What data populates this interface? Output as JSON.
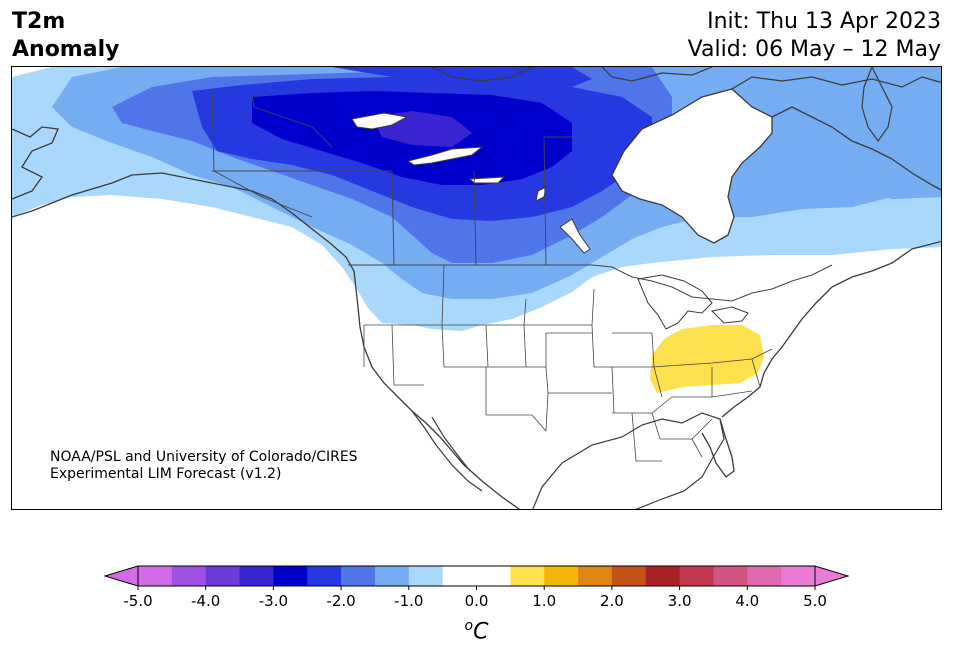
{
  "title": {
    "left_line1": "T2m",
    "left_line2": "Anomaly",
    "init": "Init: Thu 13 Apr 2023",
    "valid": "Valid: 06 May – 12 May"
  },
  "credit": {
    "line1": "NOAA/PSL and University of Colorado/CIRES",
    "line2": "Experimental LIM Forecast (v1.2)"
  },
  "colorbar": {
    "unit_main": "C",
    "unit_sup": "o",
    "ticks": [
      "-5.0",
      "-4.0",
      "-3.0",
      "-2.0",
      "-1.0",
      "0.0",
      "1.0",
      "2.0",
      "3.0",
      "4.0",
      "5.0"
    ],
    "colors": [
      "#d46be6",
      "#9f50e0",
      "#6a3bd9",
      "#3a23d1",
      "#0000cd",
      "#2638e0",
      "#4f75e8",
      "#75acf2",
      "#aad8fa",
      "#ffffff",
      "#ffffff",
      "#fde14e",
      "#f2b705",
      "#dd8612",
      "#c4541a",
      "#a92324",
      "#c23850",
      "#d25482",
      "#dd6aad",
      "#e97bd6"
    ],
    "over_color": "#e97bd6",
    "under_color": "#d46be6"
  },
  "palette": {
    "dark_blue": "#0000cd",
    "blue": "#2638e0",
    "mid_blue": "#4f75e8",
    "light_blue": "#75acf2",
    "pale_blue": "#aad8fa",
    "yellow": "#fde14e",
    "coast": "#3a3a3a"
  }
}
